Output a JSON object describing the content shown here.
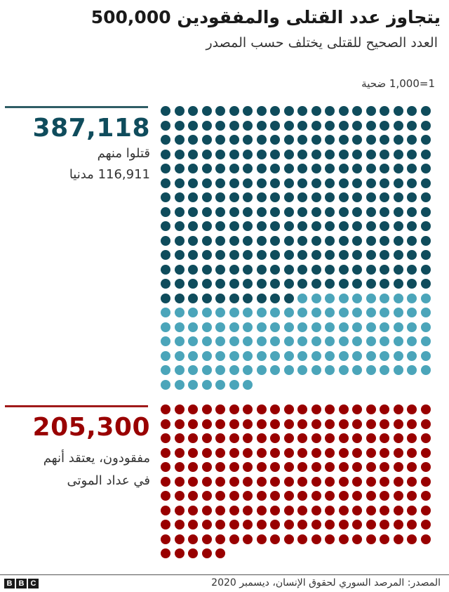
{
  "header": {
    "title": "يتجاوز عدد القتلى والمفقودين 500,000",
    "subtitle": "العدد الصحيح للقتلى يختلف حسب المصدر"
  },
  "legend": {
    "scale": "1=1,000 ضحية"
  },
  "colors": {
    "killed_other": "#0f4c5c",
    "civilians": "#4ba5ba",
    "missing": "#990000",
    "killed_rule": "#2f5d66",
    "missing_rule": "#a01a1a"
  },
  "killed": {
    "total": "387,118",
    "line1": "قتلوا منهم",
    "line2": "116,911 مدنيا"
  },
  "missing": {
    "total": "205,300",
    "line1": "مفقودون، يعتقد أنهم",
    "line2": "في عداد الموتى"
  },
  "footer": {
    "logo": [
      "B",
      "B",
      "C"
    ],
    "source": "المصدر: المرصد السوري لحقوق الإنسان، ديسمبر 2020"
  },
  "chart_data": {
    "type": "waffle",
    "title": "يتجاوز عدد القتلى والمفقودين 500,000",
    "subtitle": "العدد الصحيح للقتلى يختلف حسب المصدر",
    "unit": "1 dot = 1,000 victims",
    "columns": 20,
    "series": [
      {
        "name": "Killed (non-civilian)",
        "group": "killed",
        "dots": 270,
        "value": 270207,
        "color": "#0f4c5c"
      },
      {
        "name": "Killed civilians",
        "group": "killed",
        "dots": 117,
        "value": 116911,
        "color": "#4ba5ba"
      },
      {
        "name": "Missing, believed dead",
        "group": "missing",
        "dots": 205,
        "value": 205300,
        "color": "#990000"
      }
    ],
    "totals": {
      "killed": 387118,
      "civilians": 116911,
      "missing": 205300
    },
    "source": "المرصد السوري لحقوق الإنسان، ديسمبر 2020"
  }
}
